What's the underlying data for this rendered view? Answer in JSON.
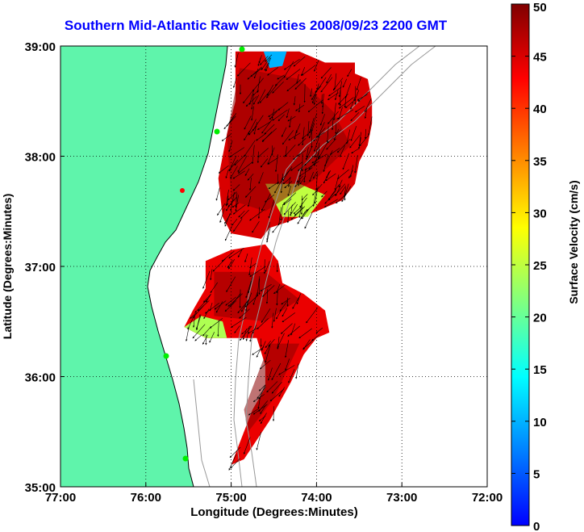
{
  "title": "Southern Mid-Atlantic Raw Velocities 2008/09/23 2200 GMT",
  "map": {
    "xlabel": "Longitude (Degrees:Minutes)",
    "ylabel": "Latitude (Degrees:Minutes)",
    "lon_range": [
      -77,
      -72
    ],
    "lat_range": [
      35,
      39
    ],
    "lon_ticks": [
      {
        "value": -77,
        "label": "77:00"
      },
      {
        "value": -76,
        "label": "76:00"
      },
      {
        "value": -75,
        "label": "75:00"
      },
      {
        "value": -74,
        "label": "74:00"
      },
      {
        "value": -73,
        "label": "73:00"
      },
      {
        "value": -72,
        "label": "72:00"
      }
    ],
    "lat_ticks": [
      {
        "value": 35,
        "label": "35:00"
      },
      {
        "value": 36,
        "label": "36:00"
      },
      {
        "value": 37,
        "label": "37:00"
      },
      {
        "value": 38,
        "label": "38:00"
      },
      {
        "value": 39,
        "label": "39:00"
      }
    ],
    "grid": "dotted",
    "land_color": "#5ff4ab",
    "coast_color": "#000000",
    "isobath_color": "#999999",
    "station_color": "#00ee00",
    "station_highlight_color": "#ff0000"
  },
  "colorbar": {
    "label": "Surface Velocity (cm/s)",
    "min": 0,
    "max": 50,
    "ticks": [
      {
        "value": 0,
        "label": "0"
      },
      {
        "value": 5,
        "label": "5"
      },
      {
        "value": 10,
        "label": "10"
      },
      {
        "value": 15,
        "label": "15"
      },
      {
        "value": 20,
        "label": "20"
      },
      {
        "value": 25,
        "label": "25"
      },
      {
        "value": 30,
        "label": "30"
      },
      {
        "value": 35,
        "label": "35"
      },
      {
        "value": 40,
        "label": "40"
      },
      {
        "value": 45,
        "label": "45"
      },
      {
        "value": 50,
        "label": "50"
      }
    ],
    "colormap": [
      "#0000ff",
      "#0080ff",
      "#00ffff",
      "#80ff80",
      "#ffff00",
      "#ff8000",
      "#ff0000",
      "#800000"
    ]
  },
  "chart_data": {
    "type": "heatmap",
    "title": "Southern Mid-Atlantic Raw Velocities 2008/09/23 2200 GMT",
    "xlabel": "Longitude (Degrees:Minutes)",
    "ylabel": "Latitude (Degrees:Minutes)",
    "xlim": [
      -77,
      -72
    ],
    "ylim": [
      35,
      39
    ],
    "value_label": "Surface Velocity (cm/s)",
    "value_range": [
      0,
      50
    ],
    "regions": [
      {
        "name_hint": "north",
        "polygon": [
          [
            -74.95,
            38.95
          ],
          [
            -74.2,
            38.95
          ],
          [
            -73.9,
            38.85
          ],
          [
            -73.55,
            38.85
          ],
          [
            -73.55,
            38.75
          ],
          [
            -73.4,
            38.7
          ],
          [
            -73.35,
            38.5
          ],
          [
            -73.35,
            38.3
          ],
          [
            -73.4,
            38.1
          ],
          [
            -73.5,
            37.95
          ],
          [
            -73.55,
            37.75
          ],
          [
            -73.7,
            37.6
          ],
          [
            -74.0,
            37.5
          ],
          [
            -74.2,
            37.45
          ],
          [
            -74.35,
            37.4
          ],
          [
            -74.55,
            37.35
          ],
          [
            -74.65,
            37.25
          ],
          [
            -75.0,
            37.3
          ],
          [
            -75.1,
            37.45
          ],
          [
            -75.15,
            37.8
          ],
          [
            -75.05,
            38.2
          ],
          [
            -74.95,
            38.5
          ],
          [
            -74.95,
            38.95
          ]
        ],
        "speed": 45
      },
      {
        "name_hint": "south",
        "polygon": [
          [
            -75.3,
            37.05
          ],
          [
            -75.3,
            36.8
          ],
          [
            -75.45,
            36.6
          ],
          [
            -75.55,
            36.45
          ],
          [
            -75.3,
            36.35
          ],
          [
            -74.95,
            36.35
          ],
          [
            -74.7,
            36.35
          ],
          [
            -74.6,
            36.1
          ],
          [
            -74.6,
            35.9
          ],
          [
            -74.75,
            35.7
          ],
          [
            -74.9,
            35.4
          ],
          [
            -75.0,
            35.2
          ],
          [
            -74.85,
            35.25
          ],
          [
            -74.55,
            35.6
          ],
          [
            -74.3,
            35.95
          ],
          [
            -74.15,
            36.2
          ],
          [
            -74.0,
            36.35
          ],
          [
            -73.85,
            36.4
          ],
          [
            -73.9,
            36.6
          ],
          [
            -74.15,
            36.75
          ],
          [
            -74.4,
            36.85
          ],
          [
            -74.45,
            37.05
          ],
          [
            -74.6,
            37.2
          ],
          [
            -75.0,
            37.15
          ],
          [
            -75.3,
            37.05
          ]
        ],
        "speed": 44
      },
      {
        "name_hint": "low-speed-patch",
        "polygon": [
          [
            -74.62,
            38.95
          ],
          [
            -74.35,
            38.95
          ],
          [
            -74.4,
            38.82
          ],
          [
            -74.55,
            38.8
          ]
        ],
        "speed": 10
      },
      {
        "name_hint": "edge-patch-1",
        "polygon": [
          [
            -74.6,
            37.75
          ],
          [
            -74.2,
            37.75
          ],
          [
            -73.9,
            37.65
          ],
          [
            -74.1,
            37.45
          ],
          [
            -74.4,
            37.45
          ]
        ],
        "speed": 25
      },
      {
        "name_hint": "edge-patch-2",
        "polygon": [
          [
            -75.55,
            36.45
          ],
          [
            -75.3,
            36.35
          ],
          [
            -75.05,
            36.35
          ],
          [
            -75.1,
            36.5
          ],
          [
            -75.35,
            36.55
          ]
        ],
        "speed": 24
      }
    ],
    "vectors": {
      "count": 420,
      "dominant_direction_deg": 210
    }
  }
}
